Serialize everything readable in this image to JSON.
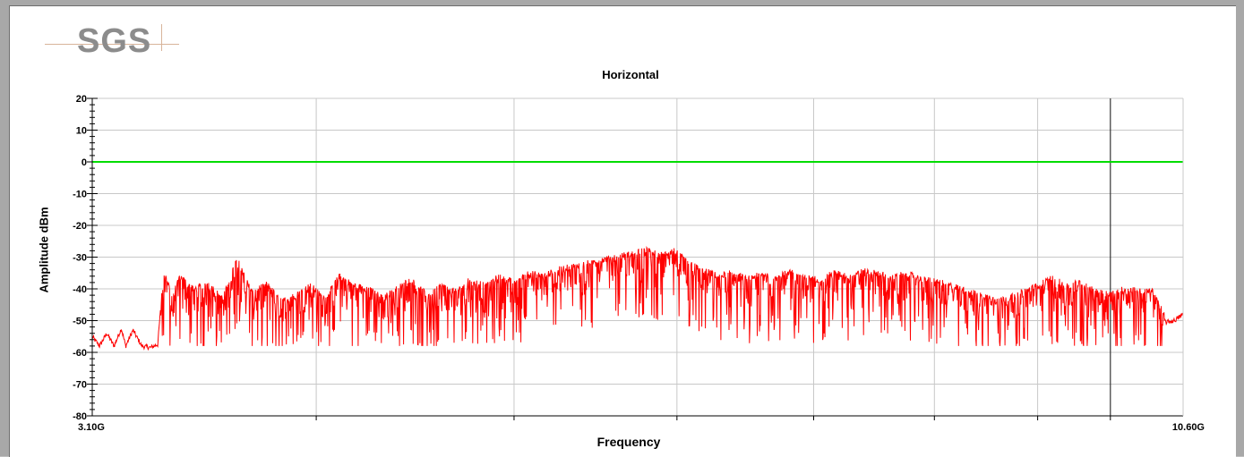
{
  "logo": {
    "text": "SGS"
  },
  "chart_data": {
    "type": "line",
    "title": "Horizontal",
    "xlabel": "Frequency",
    "ylabel": "Amplitude dBm",
    "x_unit": "GHz",
    "xlim": [
      3.1,
      10.6
    ],
    "ylim": [
      -80,
      20
    ],
    "y_ticks": [
      20,
      10,
      0,
      -10,
      -20,
      -30,
      -40,
      -50,
      -60,
      -70,
      -80
    ],
    "x_tick_labels": [
      {
        "x": 3.1,
        "label": "3.10G"
      },
      {
        "x": 10.6,
        "label": "10.60G"
      }
    ],
    "x_gridlines": [
      4.64,
      6.0,
      7.12,
      8.06,
      8.89,
      9.6,
      10.1
    ],
    "grid": true,
    "limit_line": {
      "y": 0,
      "color": "#00dd00"
    },
    "trace_color": "#ff0000",
    "series": [
      {
        "values": [
          [
            3.1,
            -55.0
          ],
          [
            3.15,
            -58.0
          ],
          [
            3.2,
            -54.0
          ],
          [
            3.25,
            -58.0
          ],
          [
            3.3,
            -52.5
          ],
          [
            3.33,
            -58.0
          ],
          [
            3.38,
            -53.0
          ],
          [
            3.44,
            -58.0
          ],
          [
            3.5,
            -58.5
          ],
          [
            3.55,
            -57.5
          ],
          [
            3.58,
            -41.0
          ],
          [
            3.6,
            -35.5
          ],
          [
            3.65,
            -44.0
          ],
          [
            3.7,
            -37.0
          ],
          [
            3.8,
            -41.0
          ],
          [
            3.9,
            -39.5
          ],
          [
            4.0,
            -44.0
          ],
          [
            4.05,
            -37.0
          ],
          [
            4.1,
            -31.0
          ],
          [
            4.15,
            -37.5
          ],
          [
            4.2,
            -42.0
          ],
          [
            4.3,
            -39.5
          ],
          [
            4.4,
            -45.0
          ],
          [
            4.5,
            -43.0
          ],
          [
            4.6,
            -40.0
          ],
          [
            4.7,
            -44.0
          ],
          [
            4.8,
            -37.0
          ],
          [
            4.9,
            -40.0
          ],
          [
            5.0,
            -41.0
          ],
          [
            5.1,
            -44.0
          ],
          [
            5.2,
            -40.5
          ],
          [
            5.3,
            -38.0
          ],
          [
            5.4,
            -43.0
          ],
          [
            5.5,
            -40.0
          ],
          [
            5.6,
            -42.0
          ],
          [
            5.7,
            -38.0
          ],
          [
            5.8,
            -40.0
          ],
          [
            5.9,
            -37.0
          ],
          [
            6.0,
            -39.0
          ],
          [
            6.1,
            -36.0
          ],
          [
            6.2,
            -37.0
          ],
          [
            6.3,
            -35.0
          ],
          [
            6.4,
            -34.0
          ],
          [
            6.5,
            -33.0
          ],
          [
            6.6,
            -32.0
          ],
          [
            6.7,
            -31.0
          ],
          [
            6.8,
            -30.0
          ],
          [
            6.9,
            -28.5
          ],
          [
            7.0,
            -30.5
          ],
          [
            7.1,
            -29.0
          ],
          [
            7.2,
            -33.0
          ],
          [
            7.3,
            -35.0
          ],
          [
            7.4,
            -37.0
          ],
          [
            7.5,
            -36.0
          ],
          [
            7.6,
            -38.0
          ],
          [
            7.7,
            -36.5
          ],
          [
            7.8,
            -37.0
          ],
          [
            7.9,
            -35.5
          ],
          [
            8.0,
            -37.5
          ],
          [
            8.1,
            -38.0
          ],
          [
            8.2,
            -36.0
          ],
          [
            8.3,
            -37.0
          ],
          [
            8.4,
            -35.5
          ],
          [
            8.5,
            -36.0
          ],
          [
            8.6,
            -37.5
          ],
          [
            8.7,
            -36.0
          ],
          [
            8.8,
            -38.0
          ],
          [
            8.9,
            -38.5
          ],
          [
            9.0,
            -40.0
          ],
          [
            9.1,
            -41.0
          ],
          [
            9.2,
            -43.0
          ],
          [
            9.3,
            -44.0
          ],
          [
            9.4,
            -44.0
          ],
          [
            9.5,
            -42.0
          ],
          [
            9.6,
            -40.0
          ],
          [
            9.7,
            -37.5
          ],
          [
            9.8,
            -40.0
          ],
          [
            9.9,
            -39.0
          ],
          [
            10.0,
            -42.0
          ],
          [
            10.1,
            -42.5
          ],
          [
            10.2,
            -41.0
          ],
          [
            10.3,
            -41.5
          ],
          [
            10.4,
            -42.0
          ],
          [
            10.48,
            -50.5
          ],
          [
            10.54,
            -50.0
          ],
          [
            10.6,
            -48.0
          ]
        ]
      }
    ]
  }
}
